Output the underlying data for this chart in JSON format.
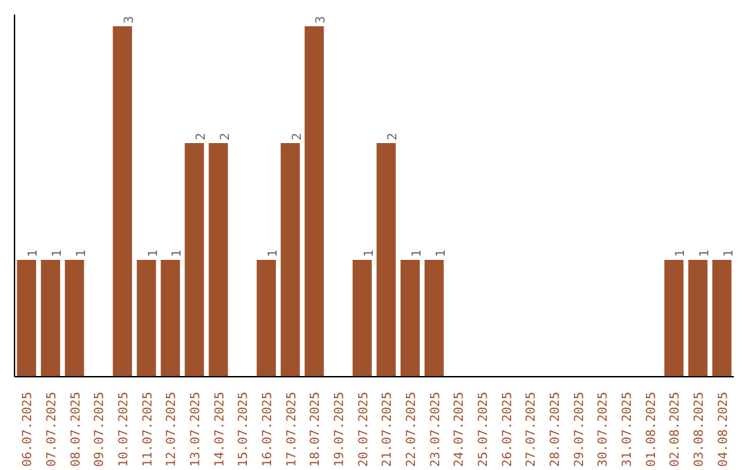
{
  "chart_data": {
    "type": "bar",
    "categories": [
      "06.07.2025",
      "07.07.2025",
      "08.07.2025",
      "09.07.2025",
      "10.07.2025",
      "11.07.2025",
      "12.07.2025",
      "13.07.2025",
      "14.07.2025",
      "15.07.2025",
      "16.07.2025",
      "17.07.2025",
      "18.07.2025",
      "19.07.2025",
      "20.07.2025",
      "21.07.2025",
      "22.07.2025",
      "23.07.2025",
      "24.07.2025",
      "25.07.2025",
      "26.07.2025",
      "27.07.2025",
      "28.07.2025",
      "29.07.2025",
      "30.07.2025",
      "31.07.2025",
      "01.08.2025",
      "02.08.2025",
      "03.08.2025",
      "04.08.2025"
    ],
    "values": [
      1,
      1,
      1,
      null,
      3,
      1,
      1,
      2,
      2,
      null,
      1,
      2,
      3,
      null,
      1,
      2,
      1,
      1,
      null,
      null,
      null,
      null,
      null,
      null,
      null,
      null,
      null,
      1,
      1,
      1
    ],
    "color": "#a0522d",
    "ylim": [
      0,
      3.1
    ],
    "data_labels": true,
    "tick_labels": "x",
    "grid": false
  }
}
